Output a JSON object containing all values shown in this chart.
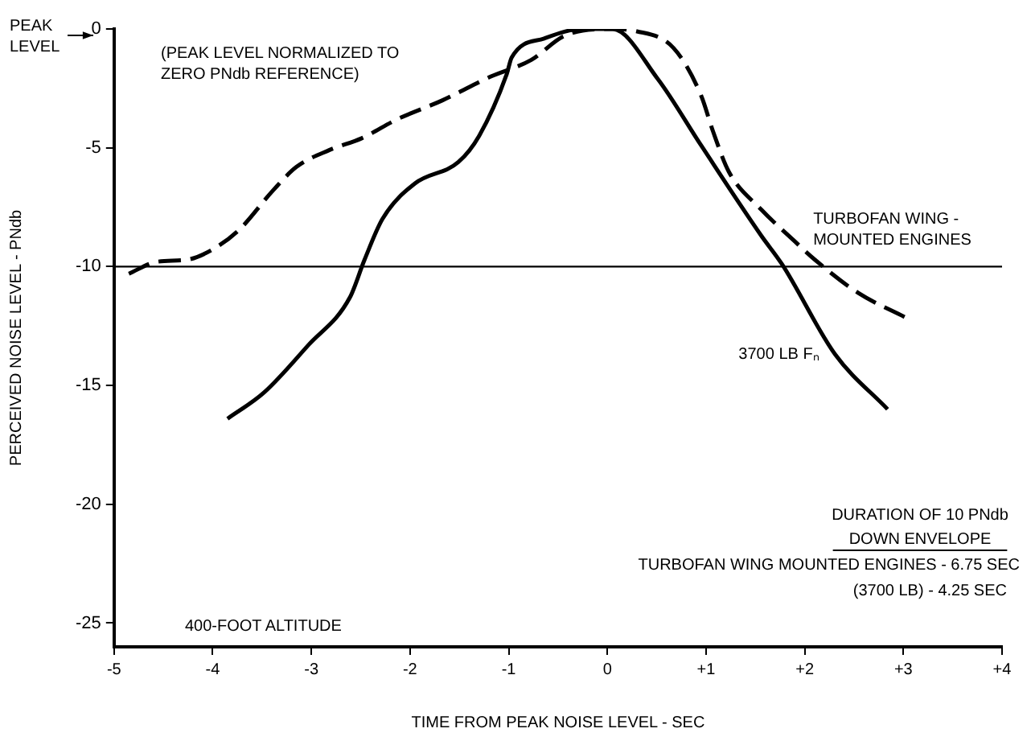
{
  "chart_data": {
    "type": "line",
    "xlabel": "TIME FROM PEAK NOISE LEVEL - SEC",
    "ylabel": "PERCEIVED NOISE LEVEL - PNdb",
    "xlim": [
      -5,
      4
    ],
    "xticks": [
      -5,
      -4,
      -3,
      -2,
      -1,
      0,
      {
        "value": 1,
        "label": "+1"
      },
      {
        "value": 2,
        "label": "+2"
      },
      {
        "value": 3,
        "label": "+3"
      },
      {
        "value": 4,
        "label": "+4"
      }
    ],
    "ylim": [
      -26,
      0
    ],
    "yticks": [
      -25,
      -20,
      -15,
      -10,
      -5,
      0
    ],
    "grid": false,
    "legend": false,
    "marker": "none",
    "series": [
      {
        "name": "TURBOFAN WING - MOUNTED ENGINES",
        "color": "#000000",
        "line_style": "dashed",
        "x": [
          -4.85,
          -4.57,
          -4.25,
          -3.97,
          -3.72,
          -3.39,
          -3.15,
          -2.82,
          -2.49,
          -2.13,
          -1.67,
          -1.18,
          -0.77,
          -0.44,
          0,
          0.3,
          0.67,
          0.95,
          1.07,
          1.23,
          1.56,
          1.89,
          2.1,
          2.54,
          3.05
        ],
        "values": [
          -10.3,
          -9.8,
          -9.7,
          -9.2,
          -8.4,
          -6.8,
          -5.8,
          -5.1,
          -4.6,
          -3.8,
          -3,
          -2,
          -1.3,
          -0.3,
          0,
          -0.1,
          -0.8,
          -2.8,
          -4.3,
          -6,
          -7.6,
          -8.9,
          -9.7,
          -11.1,
          -12.2
        ]
      },
      {
        "name": "3700 LB Fₙ",
        "color": "#000000",
        "line_style": "solid",
        "x": [
          -3.85,
          -3.48,
          -3.03,
          -2.61,
          -2.46,
          -2.28,
          -1.95,
          -1.51,
          -1.3,
          -1.02,
          -0.97,
          -0.64,
          -0.25,
          0.05,
          0.51,
          0.95,
          1.56,
          1.77,
          2.31,
          2.84
        ],
        "values": [
          -16.4,
          -15.3,
          -13.3,
          -11.3,
          -9.7,
          -8,
          -6.5,
          -5.6,
          -4.5,
          -1.9,
          -1.2,
          -0.4,
          0,
          0,
          -2.1,
          -4.9,
          -8.7,
          -9.9,
          -13.7,
          -16
        ]
      }
    ],
    "ref_lines": [
      {
        "axis": "y",
        "value": -10,
        "color": "#000000",
        "line_style": "solid"
      }
    ],
    "annotations": [
      "PEAK LEVEL",
      "(PEAK LEVEL NORMALIZED TO ZERO PNdb REFERENCE)",
      "400-FOOT ALTITUDE",
      "DURATION OF 10 PNdb",
      "DOWN ENVELOPE",
      "TURBOFAN WING MOUNTED ENGINES - 6.75 SEC",
      "(3700 LB) - 4.25 SEC"
    ]
  }
}
